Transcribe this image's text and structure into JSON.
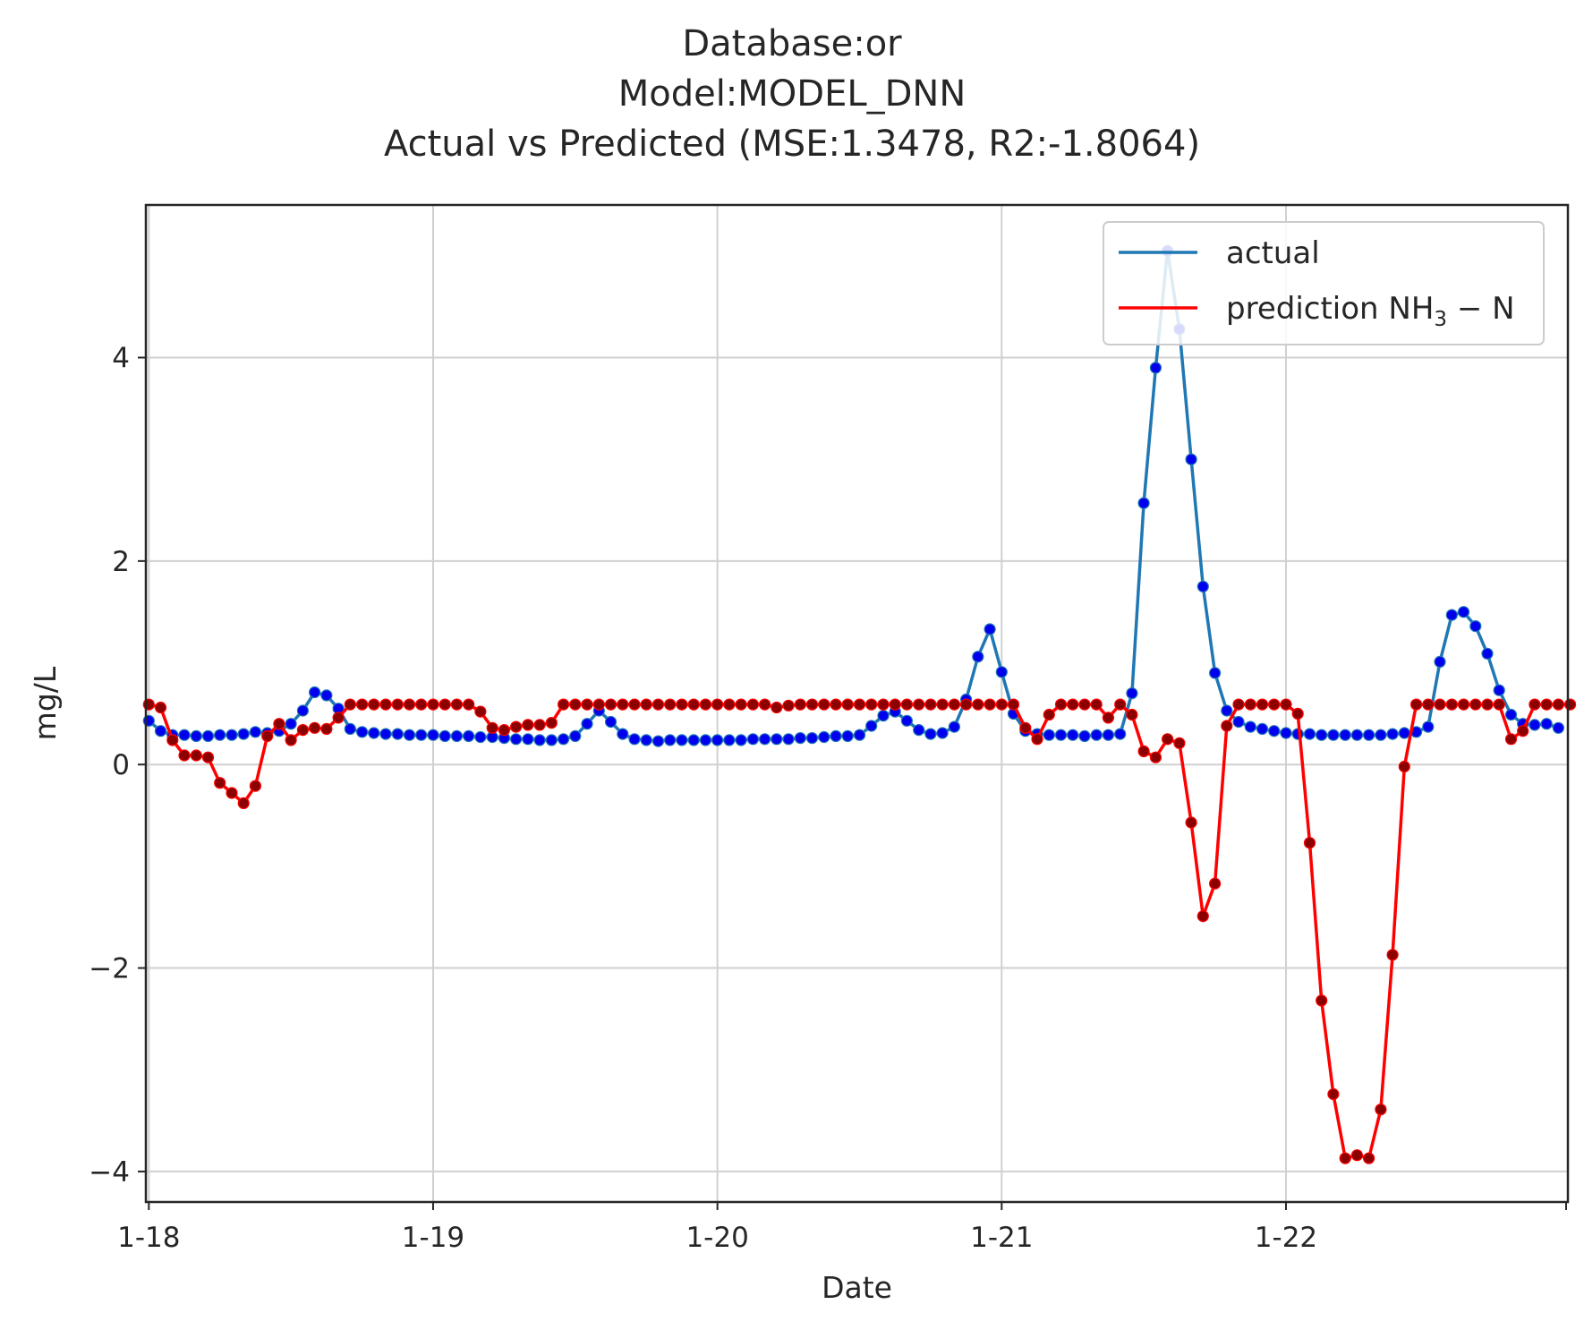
{
  "chart_data": {
    "type": "line",
    "title_lines": [
      "Database:or",
      "Model:MODEL_DNN",
      "Actual vs Predicted (MSE:1.3478, R2:-1.8064)"
    ],
    "xlabel": "Date",
    "ylabel": "mg/L",
    "x_ticks": [
      {
        "label": "1-18",
        "value": 0
      },
      {
        "label": "1-19",
        "value": 24
      },
      {
        "label": "1-20",
        "value": 48
      },
      {
        "label": "1-21",
        "value": 72
      },
      {
        "label": "1-22",
        "value": 96
      }
    ],
    "xlim": [
      -0.25,
      119.8
    ],
    "ylim": [
      -4.3,
      5.5
    ],
    "y_ticks": [
      {
        "label": "−4",
        "value": -4
      },
      {
        "label": "−2",
        "value": -2
      },
      {
        "label": "0",
        "value": 0
      },
      {
        "label": "2",
        "value": 2
      },
      {
        "label": "4",
        "value": 4
      }
    ],
    "grid": true,
    "legend_position": "top-right",
    "series": [
      {
        "name": "actual",
        "color": "#1f77b4",
        "marker_color": "#0000ee",
        "values": [
          0.43,
          0.33,
          0.29,
          0.29,
          0.28,
          0.28,
          0.29,
          0.29,
          0.3,
          0.32,
          0.31,
          0.33,
          0.4,
          0.53,
          0.71,
          0.68,
          0.55,
          0.35,
          0.32,
          0.31,
          0.3,
          0.3,
          0.29,
          0.29,
          0.29,
          0.28,
          0.28,
          0.28,
          0.27,
          0.27,
          0.26,
          0.25,
          0.25,
          0.24,
          0.24,
          0.25,
          0.28,
          0.4,
          0.53,
          0.42,
          0.3,
          0.25,
          0.24,
          0.23,
          0.24,
          0.24,
          0.24,
          0.24,
          0.24,
          0.24,
          0.24,
          0.25,
          0.25,
          0.25,
          0.25,
          0.26,
          0.26,
          0.27,
          0.28,
          0.28,
          0.29,
          0.38,
          0.48,
          0.52,
          0.43,
          0.34,
          0.3,
          0.31,
          0.37,
          0.64,
          1.06,
          1.33,
          0.91,
          0.5,
          0.33,
          0.3,
          0.29,
          0.29,
          0.29,
          0.28,
          0.29,
          0.29,
          0.3,
          0.7,
          2.57,
          3.9,
          5.05,
          4.28,
          3.0,
          1.75,
          0.9,
          0.53,
          0.42,
          0.37,
          0.35,
          0.33,
          0.31,
          0.3,
          0.3,
          0.29,
          0.29,
          0.29,
          0.29,
          0.29,
          0.29,
          0.3,
          0.31,
          0.32,
          0.37,
          1.01,
          1.47,
          1.5,
          1.36,
          1.09,
          0.73,
          0.49,
          0.4,
          0.39,
          0.4,
          0.36
        ]
      },
      {
        "name": "prediction NH3−N",
        "name_base": "prediction NH",
        "name_sub": "3",
        "name_tail": " − N",
        "color": "#ff0000",
        "marker_color": "#8b0000",
        "values": [
          0.59,
          0.56,
          0.24,
          0.09,
          0.09,
          0.07,
          -0.18,
          -0.28,
          -0.38,
          -0.21,
          0.28,
          0.4,
          0.24,
          0.34,
          0.36,
          0.35,
          0.46,
          0.59,
          0.59,
          0.59,
          0.59,
          0.59,
          0.59,
          0.59,
          0.59,
          0.59,
          0.59,
          0.59,
          0.52,
          0.36,
          0.34,
          0.37,
          0.39,
          0.39,
          0.41,
          0.59,
          0.59,
          0.59,
          0.59,
          0.59,
          0.59,
          0.59,
          0.59,
          0.59,
          0.59,
          0.59,
          0.59,
          0.59,
          0.59,
          0.59,
          0.59,
          0.59,
          0.59,
          0.56,
          0.58,
          0.59,
          0.59,
          0.59,
          0.59,
          0.59,
          0.59,
          0.59,
          0.59,
          0.59,
          0.59,
          0.59,
          0.59,
          0.59,
          0.59,
          0.59,
          0.59,
          0.59,
          0.59,
          0.59,
          0.36,
          0.25,
          0.49,
          0.59,
          0.59,
          0.59,
          0.59,
          0.46,
          0.59,
          0.49,
          0.13,
          0.07,
          0.25,
          0.21,
          -0.57,
          -1.49,
          -1.17,
          0.38,
          0.59,
          0.59,
          0.59,
          0.59,
          0.59,
          0.5,
          -0.77,
          -2.32,
          -3.24,
          -3.87,
          -3.84,
          -3.87,
          -3.39,
          -1.87,
          -0.02,
          0.59,
          0.59,
          0.59,
          0.59,
          0.59,
          0.59,
          0.59,
          0.59,
          0.25,
          0.33,
          0.59,
          0.59,
          0.59,
          0.59
        ]
      }
    ]
  }
}
